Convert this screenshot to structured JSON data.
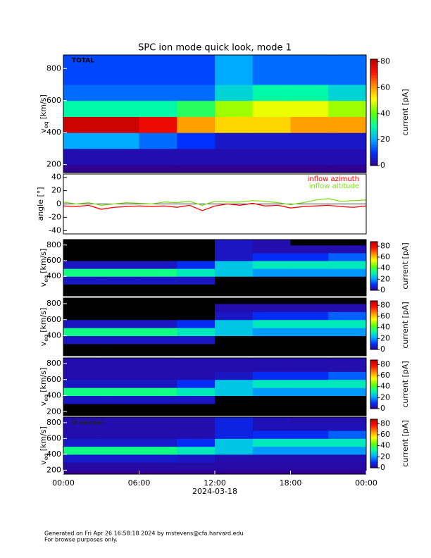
{
  "title": "SPC ion mode quick look, mode 1",
  "footer": [
    "Generated on Fri Apr 26 16:58:18 2024 by mstevens@cfa.harvard.edu",
    "For browse purposes only."
  ],
  "chart_data": [
    {
      "type": "heatmap",
      "panel_label": "TOTAL",
      "y_label_symbol": "v",
      "y_label_subscript": "eq",
      "y_label_unit": "[km/s]",
      "xlim": [
        0,
        24
      ],
      "ylim": [
        150,
        885
      ],
      "yticks": [
        200,
        400,
        600,
        800
      ],
      "x_edges": [
        0,
        3,
        6,
        9,
        12,
        15,
        18,
        21,
        24
      ],
      "y_edges": [
        200,
        300,
        400,
        500,
        600,
        700,
        800,
        900
      ],
      "z": [
        [
          3,
          3,
          3,
          3,
          3,
          3,
          3,
          3
        ],
        [
          20,
          20,
          15,
          10,
          5,
          5,
          5,
          5
        ],
        [
          80,
          80,
          75,
          60,
          55,
          55,
          60,
          60
        ],
        [
          30,
          30,
          30,
          35,
          45,
          50,
          50,
          45
        ],
        [
          15,
          15,
          15,
          15,
          25,
          30,
          30,
          25
        ],
        [
          12,
          12,
          12,
          12,
          20,
          15,
          15,
          15
        ],
        [
          12,
          12,
          12,
          12,
          20,
          15,
          15,
          15
        ]
      ],
      "colorbar_label": "current [pA]",
      "colorbar_lim": [
        0,
        82
      ],
      "colorbar_ticks": [
        0,
        20,
        40,
        60,
        80
      ],
      "colormap": [
        "#300090",
        "#0030ff",
        "#00b0ff",
        "#00ffa0",
        "#60ff00",
        "#ffff00",
        "#ff9000",
        "#ff1000",
        "#c00000"
      ]
    },
    {
      "type": "line",
      "y_label": "angle [°]",
      "xlim": [
        0,
        24
      ],
      "ylim": [
        -45,
        45
      ],
      "yticks": [
        -40,
        -20,
        0,
        20,
        40
      ],
      "x": [
        0,
        1,
        2,
        3,
        4,
        5,
        6,
        7,
        8,
        9,
        10,
        11,
        12,
        13,
        14,
        15,
        16,
        17,
        18,
        19,
        20,
        21,
        22,
        23,
        24
      ],
      "series": [
        {
          "name": "inflow azimuth",
          "color": "#ff0000",
          "values": [
            -3,
            -4,
            -2,
            -8,
            -5,
            -4,
            -3,
            -4,
            -3,
            -5,
            -2,
            -10,
            -3,
            0,
            -2,
            1,
            -3,
            -2,
            -6,
            -4,
            -3,
            -2,
            -4,
            -5,
            -3
          ]
        },
        {
          "name": "inflow altitude",
          "color": "#80e020",
          "values": [
            3,
            0,
            2,
            -2,
            0,
            2,
            1,
            0,
            3,
            2,
            4,
            -2,
            4,
            3,
            3,
            5,
            4,
            2,
            -1,
            2,
            6,
            8,
            4,
            5,
            6
          ]
        }
      ],
      "legend": "upper right"
    },
    {
      "type": "heatmap",
      "y_label_symbol": "v",
      "y_label_subscript": "eq",
      "y_label_unit": "[km/s]",
      "xlim": [
        0,
        24
      ],
      "ylim": [
        150,
        870
      ],
      "yticks": [
        400,
        600,
        800
      ],
      "zero_color": "#000000",
      "x_edges": [
        0,
        3,
        6,
        9,
        12,
        15,
        18,
        21,
        24
      ],
      "y_edges": [
        200,
        300,
        400,
        500,
        600,
        700,
        800,
        900
      ],
      "z": [
        [
          0,
          0,
          0,
          0,
          0,
          0,
          0,
          0
        ],
        [
          5,
          5,
          5,
          5,
          0,
          0,
          0,
          0
        ],
        [
          35,
          35,
          35,
          30,
          25,
          20,
          20,
          20
        ],
        [
          5,
          5,
          5,
          10,
          25,
          30,
          30,
          30
        ],
        [
          0,
          0,
          0,
          0,
          5,
          10,
          10,
          15
        ],
        [
          0,
          0,
          0,
          0,
          5,
          3,
          3,
          3
        ],
        [
          0,
          0,
          0,
          0,
          5,
          3,
          0,
          0
        ]
      ],
      "colorbar_label": "current [pA]",
      "colorbar_lim": [
        0,
        88
      ],
      "colorbar_ticks": [
        0,
        20,
        40,
        60,
        80
      ],
      "colormap": [
        "#300090",
        "#0030ff",
        "#00b0ff",
        "#00ffa0",
        "#60ff00",
        "#ffff00",
        "#ff9000",
        "#ff1000",
        "#c00000"
      ]
    },
    {
      "type": "heatmap",
      "y_label_symbol": "v",
      "y_label_subscript": "eq",
      "y_label_unit": "[km/s]",
      "xlim": [
        0,
        24
      ],
      "ylim": [
        150,
        870
      ],
      "yticks": [
        400,
        600,
        800
      ],
      "zero_color": "#000000",
      "x_edges": [
        0,
        3,
        6,
        9,
        12,
        15,
        18,
        21,
        24
      ],
      "y_edges": [
        200,
        300,
        400,
        500,
        600,
        700,
        800,
        900
      ],
      "z": [
        [
          0,
          0,
          0,
          0,
          0,
          0,
          0,
          0
        ],
        [
          5,
          5,
          5,
          5,
          0,
          0,
          0,
          0
        ],
        [
          35,
          35,
          35,
          30,
          25,
          20,
          20,
          20
        ],
        [
          5,
          5,
          5,
          10,
          25,
          30,
          30,
          30
        ],
        [
          0,
          0,
          0,
          0,
          5,
          10,
          10,
          15
        ],
        [
          0,
          0,
          0,
          0,
          3,
          3,
          3,
          3
        ],
        [
          0,
          0,
          0,
          0,
          0,
          0,
          0,
          0
        ]
      ],
      "colorbar_label": "current [pA]",
      "colorbar_lim": [
        0,
        88
      ],
      "colorbar_ticks": [
        0,
        20,
        40,
        60,
        80
      ],
      "colormap": [
        "#300090",
        "#0030ff",
        "#00b0ff",
        "#00ffa0",
        "#60ff00",
        "#ffff00",
        "#ff9000",
        "#ff1000",
        "#c00000"
      ]
    },
    {
      "type": "heatmap",
      "y_label_symbol": "v",
      "y_label_subscript": "eq",
      "y_label_unit": "[km/s]",
      "xlim": [
        0,
        24
      ],
      "ylim": [
        150,
        870
      ],
      "yticks": [
        200,
        400,
        600,
        800
      ],
      "zero_color": "#000000",
      "x_edges": [
        0,
        3,
        6,
        9,
        12,
        15,
        18,
        21,
        24
      ],
      "y_edges": [
        200,
        300,
        400,
        500,
        600,
        700,
        800,
        900
      ],
      "z": [
        [
          0,
          0,
          0,
          0,
          0,
          0,
          0,
          0
        ],
        [
          5,
          5,
          5,
          5,
          0,
          0,
          0,
          0
        ],
        [
          35,
          35,
          35,
          30,
          25,
          20,
          20,
          20
        ],
        [
          5,
          5,
          5,
          10,
          25,
          30,
          30,
          30
        ],
        [
          3,
          3,
          3,
          3,
          5,
          10,
          10,
          15
        ],
        [
          3,
          3,
          3,
          3,
          3,
          3,
          3,
          3
        ],
        [
          3,
          3,
          3,
          3,
          3,
          3,
          3,
          3
        ]
      ],
      "colorbar_label": "current [pA]",
      "colorbar_lim": [
        0,
        88
      ],
      "colorbar_ticks": [
        0,
        20,
        40,
        60,
        80
      ],
      "colormap": [
        "#300090",
        "#0030ff",
        "#00b0ff",
        "#00ffa0",
        "#60ff00",
        "#ffff00",
        "#ff9000",
        "#ff1000",
        "#c00000"
      ]
    },
    {
      "type": "heatmap",
      "panel_label": "D sensor",
      "y_label_symbol": "v",
      "y_label_subscript": "eq",
      "y_label_unit": "[km/s]",
      "xlim": [
        0,
        24
      ],
      "ylim": [
        150,
        870
      ],
      "yticks": [
        200,
        400,
        600,
        800
      ],
      "xticks": [
        {
          "value": 0,
          "label": "00:00"
        },
        {
          "value": 6,
          "label": "06:00"
        },
        {
          "value": 12,
          "label": "12:00"
        },
        {
          "value": 18,
          "label": "18:00"
        },
        {
          "value": 24,
          "label": "00:00"
        }
      ],
      "x_label": "2024-03-18",
      "x_edges": [
        0,
        3,
        6,
        9,
        12,
        15,
        18,
        21,
        24
      ],
      "y_edges": [
        200,
        300,
        400,
        500,
        600,
        700,
        800,
        900
      ],
      "z": [
        [
          2,
          2,
          2,
          2,
          2,
          2,
          2,
          2
        ],
        [
          6,
          6,
          6,
          5,
          3,
          3,
          3,
          3
        ],
        [
          35,
          35,
          35,
          30,
          25,
          20,
          20,
          20
        ],
        [
          6,
          6,
          6,
          10,
          25,
          30,
          30,
          30
        ],
        [
          3,
          3,
          3,
          3,
          8,
          10,
          10,
          15
        ],
        [
          3,
          3,
          3,
          3,
          8,
          4,
          4,
          4
        ],
        [
          3,
          3,
          3,
          3,
          8,
          4,
          3,
          3
        ]
      ],
      "colorbar_label": "current [pA]",
      "colorbar_lim": [
        0,
        88
      ],
      "colorbar_ticks": [
        0,
        20,
        40,
        60,
        80
      ],
      "colormap": [
        "#300090",
        "#0030ff",
        "#00b0ff",
        "#00ffa0",
        "#60ff00",
        "#ffff00",
        "#ff9000",
        "#ff1000",
        "#c00000"
      ]
    }
  ]
}
